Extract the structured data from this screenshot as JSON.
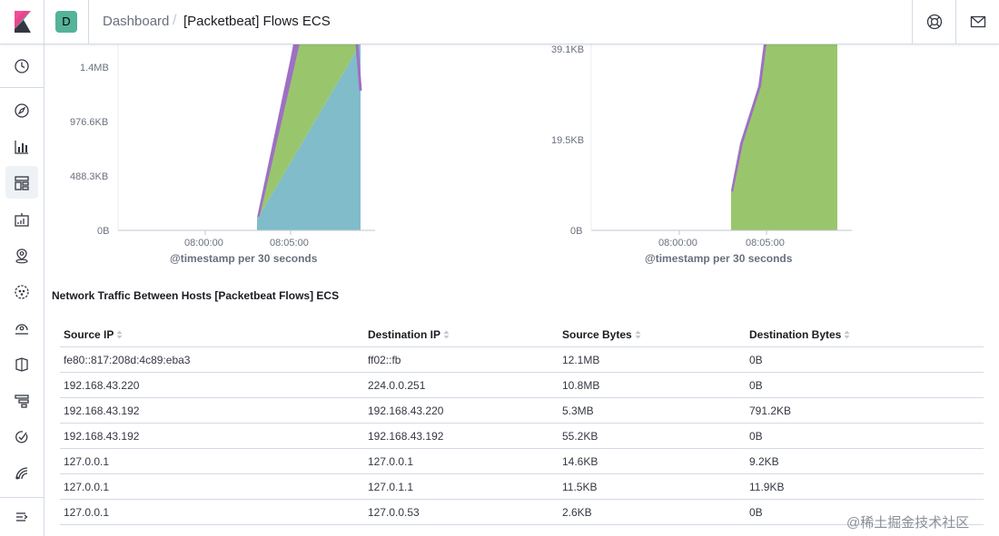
{
  "header": {
    "space_initial": "D",
    "breadcrumb_root": "Dashboard",
    "breadcrumb_separator": "/",
    "breadcrumb_current": "[Packetbeat] Flows ECS"
  },
  "nav": {
    "items": [
      "clock-icon",
      "compass-icon",
      "visualize-icon",
      "dashboard-icon",
      "canvas-icon",
      "maps-icon",
      "ml-icon",
      "metrics-icon",
      "logs-icon",
      "apm-icon",
      "uptime-icon",
      "siem-icon",
      "dev-tools-icon",
      "monitoring-icon",
      "management-icon"
    ],
    "collapse_icon": "menu-collapse-icon"
  },
  "charts": {
    "left": {
      "y_ticks": [
        "1.4MB",
        "976.6KB",
        "488.3KB",
        "0B"
      ],
      "x_ticks": [
        "08:00:00",
        "08:05:00"
      ],
      "x_title": "@timestamp per 30 seconds"
    },
    "right": {
      "y_ticks": [
        "39.1KB",
        "19.5KB",
        "0B"
      ],
      "x_ticks": [
        "08:00:00",
        "08:05:00"
      ],
      "x_title": "@timestamp per 30 seconds"
    }
  },
  "chart_data": [
    {
      "type": "area",
      "xlabel": "@timestamp per 30 seconds",
      "y_ticks": [
        "0B",
        "488.3KB",
        "976.6KB",
        "1.4MB"
      ],
      "series_colors": [
        "#6dccb1",
        "#79aad9",
        "#a0cf69",
        "#a87dd6"
      ]
    },
    {
      "type": "area",
      "xlabel": "@timestamp per 30 seconds",
      "y_ticks": [
        "0B",
        "19.5KB",
        "39.1KB"
      ],
      "series_colors": [
        "#a0cf69",
        "#a87dd6"
      ]
    }
  ],
  "table": {
    "title": "Network Traffic Between Hosts [Packetbeat Flows] ECS",
    "columns": [
      "Source IP",
      "Destination IP",
      "Source Bytes",
      "Destination Bytes"
    ],
    "rows": [
      [
        "fe80::817:208d:4c89:eba3",
        "ff02::fb",
        "12.1MB",
        "0B"
      ],
      [
        "192.168.43.220",
        "224.0.0.251",
        "10.8MB",
        "0B"
      ],
      [
        "192.168.43.192",
        "192.168.43.220",
        "5.3MB",
        "791.2KB"
      ],
      [
        "192.168.43.192",
        "192.168.43.192",
        "55.2KB",
        "0B"
      ],
      [
        "127.0.0.1",
        "127.0.0.1",
        "14.6KB",
        "9.2KB"
      ],
      [
        "127.0.0.1",
        "127.0.1.1",
        "11.5KB",
        "11.9KB"
      ],
      [
        "127.0.0.1",
        "127.0.0.53",
        "2.6KB",
        "0B"
      ]
    ]
  },
  "watermark": "@稀土掘金技术社区",
  "colors": {
    "accent": "#54b399",
    "brand_pink": "#e8488b",
    "brand_teal": "#00bfb3"
  }
}
